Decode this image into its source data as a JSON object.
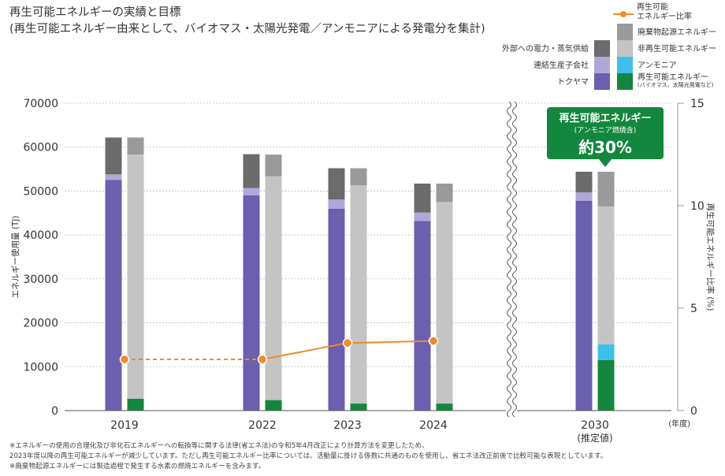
{
  "title": {
    "line1": "再生可能エネルギーの実績と目標",
    "line2": "(再生可能エネルギー由来として、バイオマス・太陽光発電／アンモニアによる発電分を集計)"
  },
  "legend": {
    "ratio_label_1": "再生可能",
    "ratio_label_2": "エネルギー比率",
    "external": "外部への電力・蒸気供給",
    "subsidiaries": "連結生産子会社",
    "toyota": "トクヤマ",
    "waste": "廃棄物起源エネルギー",
    "nonrenewable": "非再生可能エネルギー",
    "ammonia": "アンモニア",
    "renewable": "再生可能エネルギー",
    "renewable_sub": "(バイオマス、太陽光発電など)"
  },
  "callout": {
    "line1": "再生可能エネルギー",
    "line2": "(アンモニア燃焼含)",
    "line3": "約30%"
  },
  "colors": {
    "external": "#6b6b6b",
    "subsidiaries": "#b0a6d8",
    "toyota": "#6b5fb0",
    "waste": "#9a9a9a",
    "nonrenewable": "#c4c4c4",
    "ammonia": "#3cc0ec",
    "renewable": "#13873d",
    "ratio_line": "#f08b2c",
    "callout_bg": "#13873d"
  },
  "footnotes": [
    "※エネルギーの使用の合理化及び非化石エネルギーへの転換等に関する法律(省エネ法)の令和5年4月改正により計算方法を変更したため、",
    "2023年度以降の再生可能エネルギーが減少しています。ただし再生可能エネルギー比率については、活動量に掛ける係数に共通のものを使用し、省エネ法改正前後で比較可能な表現としています。",
    "※廃棄物起源エネルギーには製造過程で発生する水素の燃焼エネルギーを含みます。"
  ],
  "chart_data": {
    "type": "bar",
    "categories": [
      "2019",
      "2022",
      "2023",
      "2024",
      "2030"
    ],
    "category_sublabels": [
      "",
      "",
      "",
      "",
      "(推定値)"
    ],
    "x_unit": "(年度)",
    "ylabel": "エネルギー使用量 (TJ)",
    "y2label": "再生可能エネルギー比率 (%)",
    "ylim": [
      0,
      70000
    ],
    "y_ticks": [
      0,
      10000,
      20000,
      30000,
      40000,
      50000,
      60000,
      70000
    ],
    "y2lim": [
      0,
      15
    ],
    "y2_ticks": [
      0,
      5,
      10,
      15
    ],
    "grid": true,
    "axis_break_before": "2030",
    "stacks": [
      {
        "stack": "consumption_by_company",
        "series": [
          {
            "name": "トクヤマ",
            "values": [
              52500,
              49000,
              46000,
              43200,
              47800
            ]
          },
          {
            "name": "連結生産子会社",
            "values": [
              1300,
              1700,
              2100,
              1900,
              1900
            ]
          },
          {
            "name": "外部への電力・蒸気供給",
            "values": [
              8400,
              7700,
              7100,
              6600,
              4700
            ]
          }
        ]
      },
      {
        "stack": "consumption_by_source",
        "series": [
          {
            "name": "再生可能エネルギー",
            "values": [
              2700,
              2400,
              1600,
              1600,
              11500
            ]
          },
          {
            "name": "アンモニア",
            "values": [
              0,
              0,
              0,
              0,
              3600
            ]
          },
          {
            "name": "非再生可能エネルギー",
            "values": [
              55600,
              51000,
              49700,
              45900,
              31400
            ]
          },
          {
            "name": "廃棄物起源エネルギー",
            "values": [
              3900,
              4900,
              3900,
              4200,
              7900
            ]
          }
        ]
      }
    ],
    "line": {
      "name": "再生可能エネルギー比率",
      "values": [
        2.5,
        2.5,
        3.3,
        3.4,
        null
      ],
      "dashed_segments": [
        [
          0,
          1
        ]
      ]
    },
    "annotation": "再生可能エネルギー (アンモニア燃焼含) 約30%"
  }
}
